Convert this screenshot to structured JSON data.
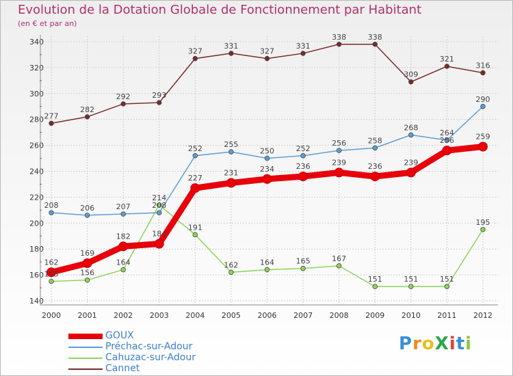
{
  "title": "Evolution de la Dotation Globale de Fonctionnement par Habitant",
  "subtitle": "(en € et par an)",
  "logo": {
    "text": "ProXiti",
    "letters": [
      "P",
      "r",
      "o",
      "X",
      "i",
      "t",
      "i"
    ],
    "colors": [
      "#3a8fd6",
      "#f08c1e",
      "#e8c020",
      "#2aa84a",
      "#e04040",
      "#3a8fd6",
      "#8cc63f"
    ]
  },
  "chart_data": {
    "type": "line",
    "x": [
      "2000",
      "2001",
      "2002",
      "2003",
      "2004",
      "2005",
      "2006",
      "2007",
      "2008",
      "2009",
      "2010",
      "2011",
      "2012"
    ],
    "ylim": [
      140,
      340
    ],
    "yticks": [
      140,
      160,
      180,
      200,
      220,
      240,
      260,
      280,
      300,
      320,
      340
    ],
    "grid": true,
    "legend_position": "bottom-left",
    "series": [
      {
        "name": "GOUX",
        "color": "#e8000b",
        "emphasis": true,
        "values": [
          162,
          169,
          182,
          184,
          227,
          231,
          234,
          236,
          239,
          236,
          239,
          256,
          259
        ]
      },
      {
        "name": "Préchac-sur-Adour",
        "color": "#5c9fd6",
        "emphasis": false,
        "values": [
          208,
          206,
          207,
          208,
          252,
          255,
          250,
          252,
          256,
          258,
          268,
          264,
          290
        ]
      },
      {
        "name": "Cahuzac-sur-Adour",
        "color": "#8ed45a",
        "emphasis": false,
        "values": [
          155,
          156,
          164,
          214,
          191,
          162,
          164,
          165,
          167,
          151,
          151,
          151,
          195
        ]
      },
      {
        "name": "Cannet",
        "color": "#7a2a2a",
        "emphasis": false,
        "values": [
          277,
          282,
          292,
          293,
          327,
          331,
          327,
          331,
          338,
          338,
          309,
          321,
          316
        ]
      }
    ]
  }
}
